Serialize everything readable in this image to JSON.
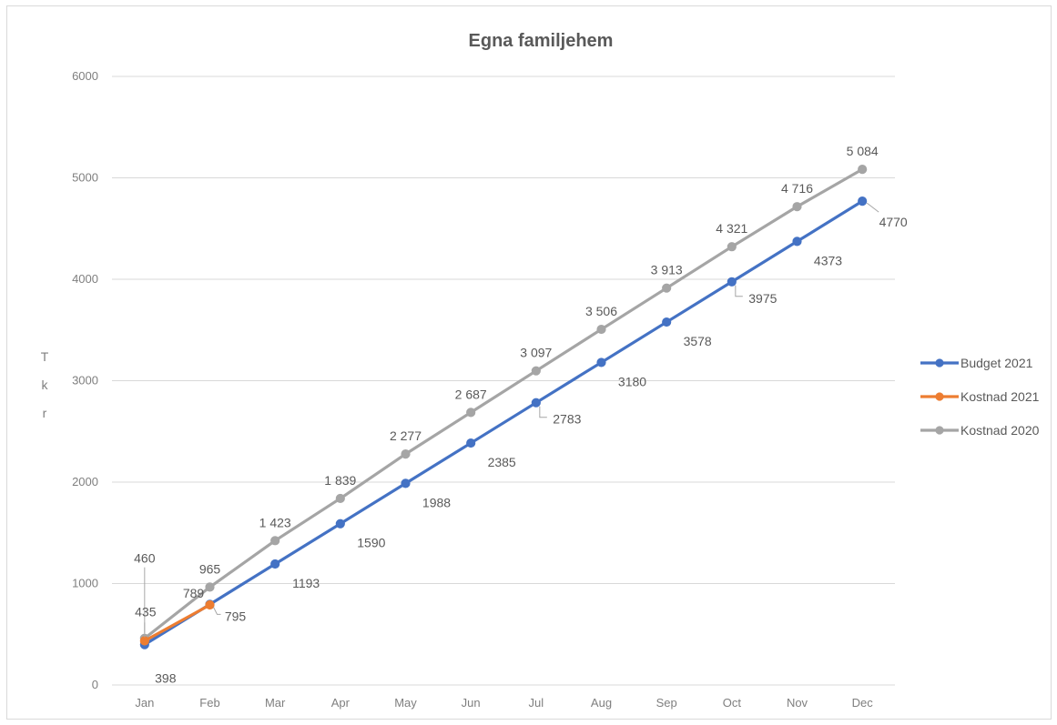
{
  "chart_data": {
    "type": "line",
    "title": "Egna familjehem",
    "ylabel": "Tkr",
    "xlabel": "",
    "categories": [
      "Jan",
      "Feb",
      "Mar",
      "Apr",
      "May",
      "Jun",
      "Jul",
      "Aug",
      "Sep",
      "Oct",
      "Nov",
      "Dec"
    ],
    "ylim": [
      0,
      6000
    ],
    "yticks": [
      0,
      1000,
      2000,
      3000,
      4000,
      5000,
      6000
    ],
    "grid": true,
    "legend_position": "right",
    "series": [
      {
        "name": "Budget 2021",
        "color": "#4472c4",
        "values": [
          398,
          795,
          1193,
          1590,
          1988,
          2385,
          2783,
          3180,
          3578,
          3975,
          4373,
          4770
        ],
        "labels": [
          "398",
          "795",
          "1193",
          "1590",
          "1988",
          "2385",
          "2783",
          "3180",
          "3578",
          "3975",
          "4373",
          "4770"
        ]
      },
      {
        "name": "Kostnad 2021",
        "color": "#ed7d31",
        "values": [
          435,
          789,
          null,
          null,
          null,
          null,
          null,
          null,
          null,
          null,
          null,
          null
        ],
        "labels": [
          "435",
          "789",
          "",
          "",
          "",
          "",
          "",
          "",
          "",
          "",
          "",
          ""
        ]
      },
      {
        "name": "Kostnad 2020",
        "color": "#a5a5a5",
        "values": [
          460,
          965,
          1423,
          1839,
          2277,
          2687,
          3097,
          3506,
          3913,
          4321,
          4716,
          5084
        ],
        "labels": [
          "460",
          "965",
          "1 423",
          "1 839",
          "2 277",
          "2 687",
          "3 097",
          "3 506",
          "3 913",
          "4 321",
          "4 716",
          "5 084"
        ]
      }
    ]
  }
}
